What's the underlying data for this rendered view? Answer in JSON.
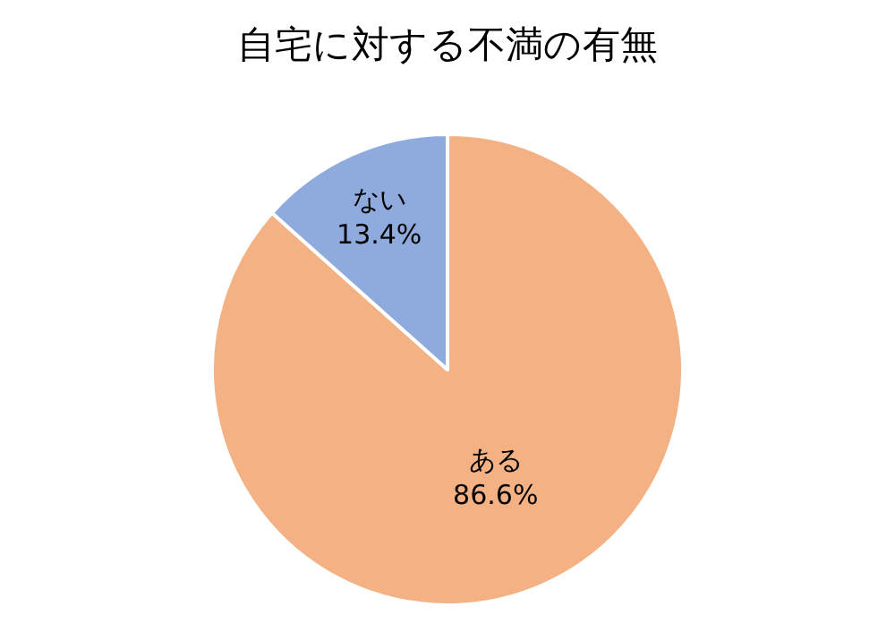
{
  "chart_data": {
    "type": "pie",
    "title": "自宅に対する不満の有無",
    "categories": [
      "ある",
      "ない"
    ],
    "values": [
      86.6,
      13.4
    ],
    "colors": [
      "#f4b183",
      "#8faadc"
    ],
    "value_labels": [
      "86.6%",
      "13.4%"
    ],
    "legend": false
  }
}
